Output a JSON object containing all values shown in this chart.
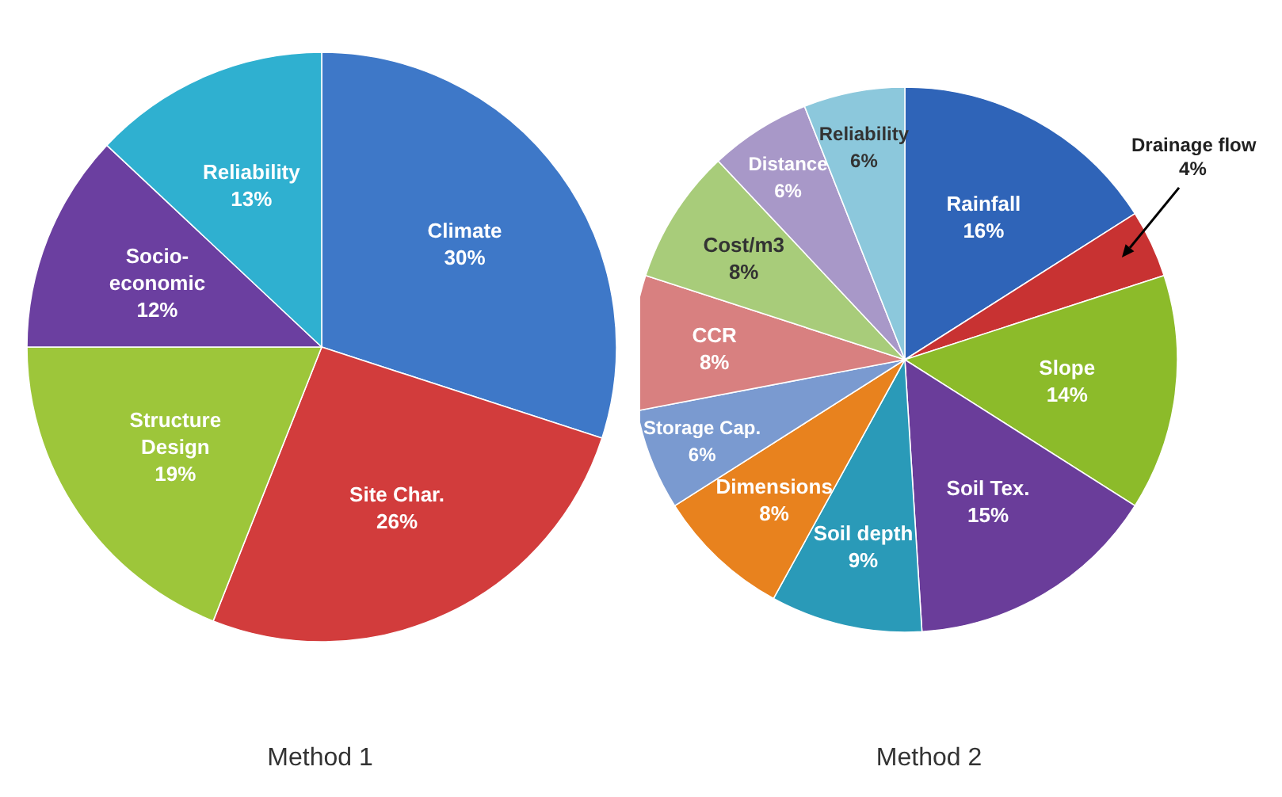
{
  "chart_data": [
    {
      "type": "pie",
      "title": "Method 1",
      "categories": [
        "Climate",
        "Site Char.",
        "Structure Design",
        "Socio-economic",
        "Reliability"
      ],
      "values": [
        30,
        26,
        19,
        12,
        13
      ],
      "value_labels": [
        "30%",
        "26%",
        "19%",
        "12%",
        "13%"
      ],
      "colors": [
        "#3e78c8",
        "#d23c3c",
        "#9dc63a",
        "#6b3fa0",
        "#2fb0d0"
      ],
      "legend": false
    },
    {
      "type": "pie",
      "title": "Method 2",
      "categories": [
        "Rainfall",
        "Drainage flow",
        "Slope",
        "Soil Tex.",
        "Soil depth",
        "Dimensions",
        "Storage Cap.",
        "CCR",
        "Cost/m3",
        "Distance",
        "Reliability"
      ],
      "values": [
        16,
        4,
        14,
        15,
        9,
        8,
        6,
        8,
        8,
        6,
        6
      ],
      "value_labels": [
        "16%",
        "4%",
        "14%",
        "15%",
        "9%",
        "8%",
        "6%",
        "8%",
        "8%",
        "6%",
        "6%"
      ],
      "colors": [
        "#2f64b8",
        "#c83232",
        "#8cbb2a",
        "#6a3d9a",
        "#2a9ab8",
        "#e8821e",
        "#7a9ad0",
        "#d88080",
        "#a8cc7a",
        "#a898c8",
        "#8cc8dc"
      ],
      "legend": false
    }
  ]
}
